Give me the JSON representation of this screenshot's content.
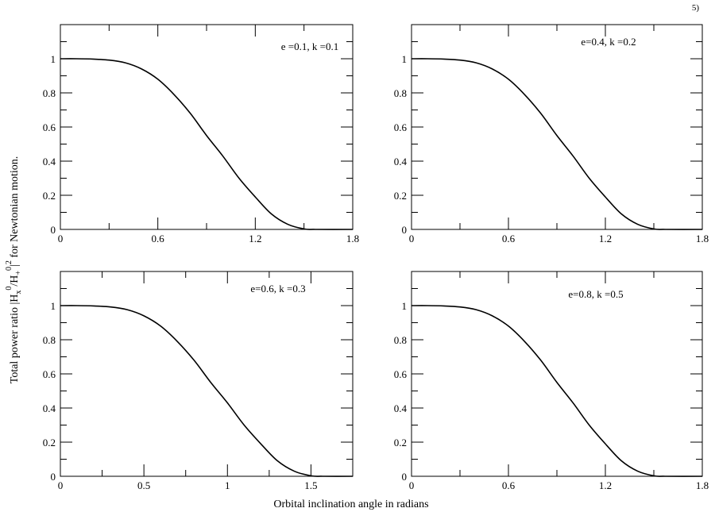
{
  "figure": {
    "corner_note": "5)",
    "ylabel_main": "Total power ratio |H",
    "ylabel_sub_x": "x",
    "ylabel_sup_0": "0",
    "ylabel_slash": "/H",
    "ylabel_sub_plus": "+",
    "ylabel_sup_0b": "0",
    "ylabel_bar": "|",
    "ylabel_sup_2": "2",
    "ylabel_tail": " for Newtonian motion.",
    "xlabel": "Orbital inclination angle in radians"
  },
  "chart_data": [
    {
      "type": "line",
      "annotation": "e =0.1, k =0.1",
      "xlim": [
        0,
        1.8
      ],
      "ylim": [
        0,
        1.2
      ],
      "xticks": [
        "0",
        "0.6",
        "1.2",
        "1.8"
      ],
      "xtick_values": [
        0,
        0.6,
        1.2,
        1.8
      ],
      "xminor": [
        0.3,
        0.9,
        1.5
      ],
      "yticks": [
        "0",
        "0.2",
        "0.4",
        "0.6",
        "0.8",
        "1"
      ],
      "ytick_values": [
        0,
        0.2,
        0.4,
        0.6,
        0.8,
        1
      ],
      "yminor": [
        0.1,
        0.3,
        0.5,
        0.7,
        0.9,
        1.1
      ],
      "grid": false,
      "series": [
        {
          "x": [
            0,
            0.1,
            0.2,
            0.3,
            0.4,
            0.5,
            0.6,
            0.7,
            0.8,
            0.9,
            1.0,
            1.1,
            1.2,
            1.3,
            1.4,
            1.5,
            1.5708,
            1.8
          ],
          "y": [
            1,
            1,
            0.998,
            0.992,
            0.976,
            0.94,
            0.88,
            0.79,
            0.68,
            0.55,
            0.43,
            0.3,
            0.19,
            0.09,
            0.03,
            0.003,
            0,
            0
          ]
        }
      ]
    },
    {
      "type": "line",
      "annotation": "e=0.4, k =0.2",
      "xlim": [
        0,
        1.8
      ],
      "ylim": [
        0,
        1.2
      ],
      "xticks": [
        "0",
        "0.6",
        "1.2",
        "1.8"
      ],
      "xtick_values": [
        0,
        0.6,
        1.2,
        1.8
      ],
      "xminor": [
        0.3,
        0.9,
        1.5
      ],
      "yticks": [
        "0",
        "0.2",
        "0.4",
        "0.6",
        "0.8",
        "1"
      ],
      "ytick_values": [
        0,
        0.2,
        0.4,
        0.6,
        0.8,
        1
      ],
      "yminor": [
        0.1,
        0.3,
        0.5,
        0.7,
        0.9,
        1.1
      ],
      "grid": false,
      "series": [
        {
          "x": [
            0,
            0.1,
            0.2,
            0.3,
            0.4,
            0.5,
            0.6,
            0.7,
            0.8,
            0.9,
            1.0,
            1.1,
            1.2,
            1.3,
            1.4,
            1.5,
            1.5708,
            1.8
          ],
          "y": [
            1,
            1,
            0.998,
            0.992,
            0.976,
            0.94,
            0.88,
            0.79,
            0.68,
            0.55,
            0.43,
            0.3,
            0.19,
            0.09,
            0.03,
            0.003,
            0,
            0
          ]
        }
      ]
    },
    {
      "type": "line",
      "annotation": "e=0.6, k =0.3",
      "xlim": [
        0,
        1.75
      ],
      "ylim": [
        0,
        1.2
      ],
      "xticks": [
        "0",
        "0.5",
        "1",
        "1.5"
      ],
      "xtick_values": [
        0,
        0.5,
        1,
        1.5
      ],
      "xminor": [
        0.25,
        0.75,
        1.25
      ],
      "yticks": [
        "0",
        "0.2",
        "0.4",
        "0.6",
        "0.8",
        "1"
      ],
      "ytick_values": [
        0,
        0.2,
        0.4,
        0.6,
        0.8,
        1
      ],
      "yminor": [
        0.1,
        0.3,
        0.5,
        0.7,
        0.9,
        1.1
      ],
      "grid": false,
      "series": [
        {
          "x": [
            0,
            0.1,
            0.2,
            0.3,
            0.4,
            0.5,
            0.6,
            0.7,
            0.8,
            0.9,
            1.0,
            1.1,
            1.2,
            1.3,
            1.4,
            1.5,
            1.5708,
            1.75
          ],
          "y": [
            1,
            1,
            0.998,
            0.992,
            0.976,
            0.94,
            0.88,
            0.79,
            0.68,
            0.55,
            0.43,
            0.3,
            0.19,
            0.09,
            0.03,
            0.003,
            0,
            0
          ]
        }
      ]
    },
    {
      "type": "line",
      "annotation": "e=0.8, k =0.5",
      "xlim": [
        0,
        1.8
      ],
      "ylim": [
        0,
        1.2
      ],
      "xticks": [
        "0",
        "0.6",
        "1.2",
        "1.8"
      ],
      "xtick_values": [
        0,
        0.6,
        1.2,
        1.8
      ],
      "xminor": [
        0.3,
        0.9,
        1.5
      ],
      "yticks": [
        "0",
        "0.2",
        "0.4",
        "0.6",
        "0.8",
        "1"
      ],
      "ytick_values": [
        0,
        0.2,
        0.4,
        0.6,
        0.8,
        1
      ],
      "yminor": [
        0.1,
        0.3,
        0.5,
        0.7,
        0.9,
        1.1
      ],
      "grid": false,
      "series": [
        {
          "x": [
            0,
            0.1,
            0.2,
            0.3,
            0.4,
            0.5,
            0.6,
            0.7,
            0.8,
            0.9,
            1.0,
            1.1,
            1.2,
            1.3,
            1.4,
            1.5,
            1.5708,
            1.8
          ],
          "y": [
            1,
            1,
            0.998,
            0.992,
            0.976,
            0.94,
            0.88,
            0.79,
            0.68,
            0.55,
            0.43,
            0.3,
            0.19,
            0.09,
            0.03,
            0.003,
            0,
            0
          ]
        }
      ]
    }
  ]
}
